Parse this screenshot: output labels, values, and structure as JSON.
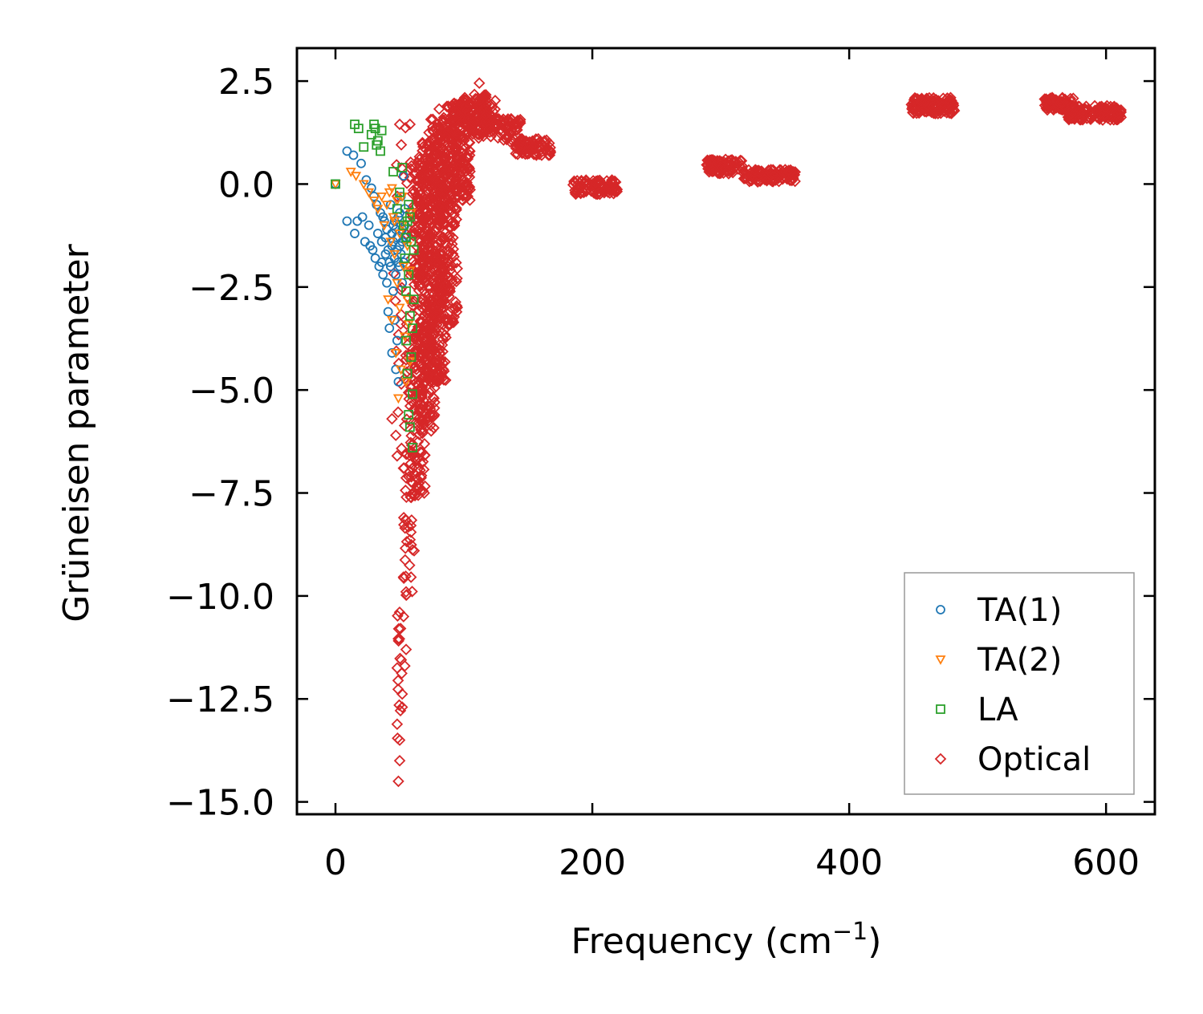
{
  "chart_data": {
    "type": "scatter",
    "xlabel": "Frequency (cm",
    "xlabel_sup": "−1",
    "xlabel_close": ")",
    "ylabel": "Grüneisen parameter",
    "xlim": [
      -30,
      638
    ],
    "ylim": [
      -15.3,
      3.3
    ],
    "xticks": [
      0,
      200,
      400,
      600
    ],
    "xtick_labels": [
      "0",
      "200",
      "400",
      "600"
    ],
    "yticks": [
      2.5,
      0.0,
      -2.5,
      -5.0,
      -7.5,
      -10.0,
      -12.5,
      -15.0
    ],
    "ytick_labels": [
      "2.5",
      "0.0",
      "−2.5",
      "−5.0",
      "−7.5",
      "−10.0",
      "−12.5",
      "−15.0"
    ],
    "legend_position": "lower-right",
    "series": [
      {
        "name": "TA(1)",
        "marker": "circle",
        "color": "#1f77b4",
        "points": [
          [
            0,
            0.0
          ],
          [
            9,
            0.8
          ],
          [
            9,
            -0.9
          ],
          [
            14,
            0.7
          ],
          [
            15,
            -1.2
          ],
          [
            17,
            -0.9
          ],
          [
            20,
            0.5
          ],
          [
            21,
            -0.8
          ],
          [
            23,
            -1.4
          ],
          [
            24,
            0.1
          ],
          [
            26,
            -1.0
          ],
          [
            27,
            -1.5
          ],
          [
            28,
            -0.1
          ],
          [
            29,
            -1.6
          ],
          [
            30,
            -0.3
          ],
          [
            31,
            -1.8
          ],
          [
            32,
            -0.5
          ],
          [
            33,
            -1.2
          ],
          [
            34,
            -2.0
          ],
          [
            35,
            -0.7
          ],
          [
            36,
            -1.4
          ],
          [
            37,
            -2.2
          ],
          [
            38,
            -0.9
          ],
          [
            39,
            -1.7
          ],
          [
            40,
            -2.4
          ],
          [
            40,
            -1.1
          ],
          [
            41,
            -3.1
          ],
          [
            42,
            -1.9
          ],
          [
            42,
            -3.5
          ],
          [
            43,
            -0.5
          ],
          [
            44,
            -1.5
          ],
          [
            44,
            -4.1
          ],
          [
            45,
            -2.6
          ],
          [
            45,
            -1.0
          ],
          [
            46,
            -3.3
          ],
          [
            46,
            -1.8
          ],
          [
            47,
            -4.5
          ],
          [
            47,
            -2.2
          ],
          [
            48,
            -1.3
          ],
          [
            48,
            -3.8
          ],
          [
            49,
            -4.8
          ],
          [
            49,
            -0.8
          ],
          [
            50,
            -2.0
          ],
          [
            50,
            -1.5
          ],
          [
            51,
            -1.7
          ],
          [
            51,
            -0.3
          ],
          [
            52,
            -1.1
          ],
          [
            52,
            -2.4
          ],
          [
            53,
            0.2
          ],
          [
            53,
            -1.9
          ],
          [
            54,
            -0.6
          ],
          [
            55,
            -1.3
          ],
          [
            44,
            -1.2
          ],
          [
            46,
            -0.9
          ],
          [
            48,
            -1.6
          ],
          [
            43,
            -2.0
          ],
          [
            45,
            -1.4
          ],
          [
            47,
            -1.1
          ],
          [
            49,
            -1.9
          ],
          [
            50,
            -0.7
          ],
          [
            41,
            -1.6
          ],
          [
            39,
            -1.3
          ],
          [
            37,
            -0.8
          ],
          [
            36,
            -1.9
          ],
          [
            52,
            -1.4
          ],
          [
            54,
            -1.0
          ]
        ]
      },
      {
        "name": "TA(2)",
        "marker": "triangle-down",
        "color": "#ff7f0e",
        "points": [
          [
            0,
            0.0
          ],
          [
            12,
            0.3
          ],
          [
            16,
            0.2
          ],
          [
            22,
            0.0
          ],
          [
            26,
            -0.2
          ],
          [
            30,
            -0.4
          ],
          [
            33,
            -0.6
          ],
          [
            36,
            -0.3
          ],
          [
            38,
            -1.0
          ],
          [
            40,
            -0.5
          ],
          [
            41,
            -2.8
          ],
          [
            42,
            -0.2
          ],
          [
            43,
            -1.4
          ],
          [
            44,
            -3.3
          ],
          [
            45,
            -0.8
          ],
          [
            46,
            -1.7
          ],
          [
            47,
            -4.1
          ],
          [
            48,
            -2.4
          ],
          [
            49,
            -5.2
          ],
          [
            50,
            -3.0
          ],
          [
            51,
            -4.5
          ],
          [
            52,
            -1.0
          ],
          [
            53,
            -2.0
          ],
          [
            54,
            -3.7
          ],
          [
            55,
            -4.8
          ],
          [
            56,
            -1.5
          ],
          [
            57,
            -3.4
          ],
          [
            58,
            -4.3
          ],
          [
            58,
            -2.1
          ],
          [
            59,
            -0.7
          ],
          [
            48,
            -0.4
          ],
          [
            50,
            -1.2
          ],
          [
            52,
            -0.3
          ],
          [
            46,
            -0.9
          ],
          [
            44,
            -0.1
          ],
          [
            56,
            -2.8
          ]
        ]
      },
      {
        "name": "LA",
        "marker": "square",
        "color": "#2ca02c",
        "points": [
          [
            0,
            0.0
          ],
          [
            15,
            1.45
          ],
          [
            18,
            1.35
          ],
          [
            22,
            0.9
          ],
          [
            28,
            1.2
          ],
          [
            30,
            1.45
          ],
          [
            31,
            1.35
          ],
          [
            32,
            0.95
          ],
          [
            33,
            1.05
          ],
          [
            35,
            0.8
          ],
          [
            36,
            1.3
          ],
          [
            45,
            0.3
          ],
          [
            48,
            -0.6
          ],
          [
            50,
            -0.2
          ],
          [
            52,
            0.4
          ],
          [
            53,
            -1.0
          ],
          [
            54,
            -1.8
          ],
          [
            55,
            -2.6
          ],
          [
            55,
            -3.8
          ],
          [
            56,
            -4.6
          ],
          [
            56,
            -0.9
          ],
          [
            57,
            -5.6
          ],
          [
            57,
            -2.2
          ],
          [
            58,
            -3.2
          ],
          [
            58,
            -5.9
          ],
          [
            59,
            -1.4
          ],
          [
            59,
            -4.2
          ],
          [
            60,
            -6.4
          ],
          [
            60,
            -5.1
          ],
          [
            61,
            -1.6
          ],
          [
            61,
            -2.8
          ],
          [
            57,
            -0.5
          ],
          [
            55,
            -1.3
          ],
          [
            58,
            -0.8
          ],
          [
            60,
            -3.5
          ]
        ]
      },
      {
        "name": "Optical",
        "marker": "diamond",
        "color": "#d62728",
        "points": [],
        "generated": [
          {
            "x_range": [
              45,
              60
            ],
            "y_range": [
              -6.6,
              1.4
            ],
            "count": 40
          },
          {
            "x_range": [
              48,
              52
            ],
            "y_range": [
              -14.5,
              -10.2
            ],
            "count": 18
          },
          {
            "x_range": [
              52,
              62
            ],
            "y_range": [
              -10.0,
              -6.5
            ],
            "count": 40
          },
          {
            "x_range": [
              58,
              70
            ],
            "y_range": [
              -7.6,
              0.6
            ],
            "count": 220
          },
          {
            "x_range": [
              65,
              78
            ],
            "y_range": [
              -6.0,
              1.2
            ],
            "count": 260
          },
          {
            "x_range": [
              72,
              86
            ],
            "y_range": [
              -4.8,
              1.6
            ],
            "count": 260
          },
          {
            "x_range": [
              80,
              95
            ],
            "y_range": [
              -3.5,
              1.9
            ],
            "count": 220
          },
          {
            "x_range": [
              90,
              105
            ],
            "y_range": [
              -0.4,
              2.0
            ],
            "count": 160
          },
          {
            "x_range": [
              100,
              118
            ],
            "y_range": [
              1.1,
              2.2
            ],
            "count": 90
          },
          {
            "x_range": [
              110,
              125
            ],
            "y_range": [
              1.3,
              2.1
            ],
            "count": 40
          },
          {
            "x_range": [
              120,
              145
            ],
            "y_range": [
              1.0,
              1.6
            ],
            "count": 60
          },
          {
            "x_range": [
              140,
              168
            ],
            "y_range": [
              0.7,
              1.1
            ],
            "count": 70
          },
          {
            "x_range": [
              185,
              220
            ],
            "y_range": [
              -0.25,
              0.1
            ],
            "count": 90
          },
          {
            "x_range": [
              288,
              318
            ],
            "y_range": [
              0.25,
              0.6
            ],
            "count": 80
          },
          {
            "x_range": [
              318,
              358
            ],
            "y_range": [
              0.05,
              0.35
            ],
            "count": 100
          },
          {
            "x_range": [
              448,
              482
            ],
            "y_range": [
              1.7,
              2.1
            ],
            "count": 120
          },
          {
            "x_range": [
              552,
              575
            ],
            "y_range": [
              1.8,
              2.1
            ],
            "count": 80
          },
          {
            "x_range": [
              570,
              612
            ],
            "y_range": [
              1.55,
              1.9
            ],
            "count": 140
          }
        ],
        "extra_points": [
          [
            50,
            1.45
          ],
          [
            58,
            1.45
          ],
          [
            112,
            2.45
          ],
          [
            52,
            -12.7
          ],
          [
            50,
            -13.5
          ],
          [
            50,
            -14.0
          ],
          [
            49,
            -14.5
          ],
          [
            55,
            -11.3
          ],
          [
            54,
            -11.7
          ],
          [
            53,
            -10.5
          ],
          [
            55,
            -9.9
          ],
          [
            44,
            -5.7
          ],
          [
            48,
            -6.6
          ],
          [
            47,
            -6.1
          ]
        ]
      }
    ]
  }
}
